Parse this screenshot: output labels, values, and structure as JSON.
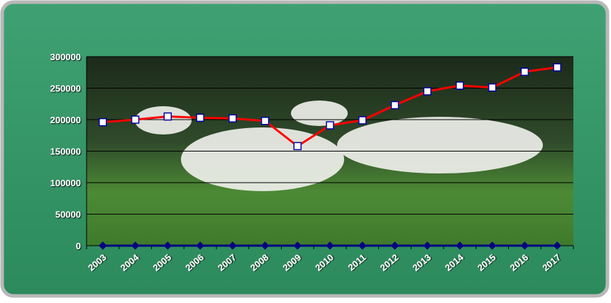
{
  "chart_data": {
    "type": "line",
    "categories": [
      "2003",
      "2004",
      "2005",
      "2006",
      "2007",
      "2008",
      "2009",
      "2010",
      "2011",
      "2012",
      "2013",
      "2014",
      "2015",
      "2016",
      "2017"
    ],
    "series": [
      {
        "color": "#ff0000",
        "marker": "square",
        "values": [
          196000,
          200000,
          205000,
          203000,
          202000,
          198000,
          158000,
          191000,
          199000,
          223000,
          245000,
          254000,
          251000,
          276000,
          283000
        ]
      },
      {
        "color": "#000080",
        "marker": "diamond",
        "values": [
          0,
          0,
          0,
          0,
          0,
          0,
          0,
          0,
          0,
          0,
          0,
          0,
          0,
          0,
          0
        ]
      }
    ],
    "ylim": [
      0,
      300000
    ],
    "yticks": [
      0,
      50000,
      100000,
      150000,
      200000,
      250000,
      300000
    ],
    "grid": true
  }
}
